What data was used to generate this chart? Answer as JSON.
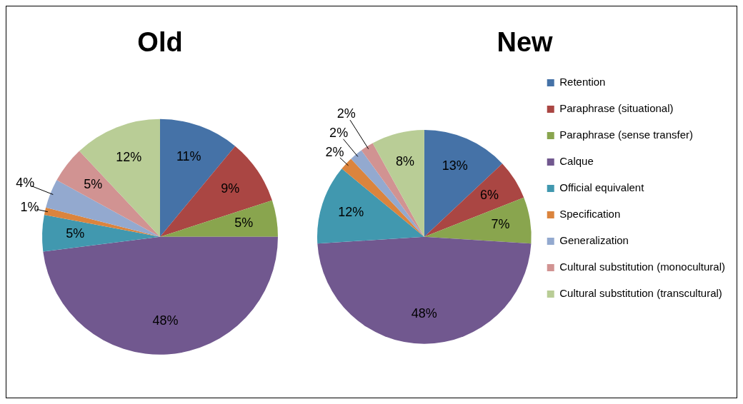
{
  "chart_data": [
    {
      "type": "pie",
      "title": "Old",
      "categories": [
        null,
        null,
        null,
        null,
        null,
        null,
        null,
        null,
        null
      ],
      "values": [
        11,
        9,
        5,
        48,
        5,
        1,
        4,
        5,
        12
      ],
      "value_labels": [
        "11%",
        "9%",
        "5%",
        "48%",
        "5%",
        "1%",
        "4%",
        "5%",
        "12%"
      ],
      "colors": [
        "#4572a7",
        "#aa4643",
        "#89a54e",
        "#71588f",
        "#4198af",
        "#db843d",
        "#93a9cf",
        "#d19392",
        "#b9cd96"
      ],
      "legend": false
    },
    {
      "type": "pie",
      "title": "New",
      "categories": [
        "Retention",
        "Paraphrase (situational)",
        "Paraphrase (sense transfer)",
        "Calque",
        "Official equivalent",
        "Specification",
        "Generalization",
        "Cultural substitution (monocultural)",
        "Cultural substitution (transcultural)"
      ],
      "values": [
        13,
        6,
        7,
        48,
        12,
        2,
        2,
        2,
        8
      ],
      "value_labels": [
        "13%",
        "6%",
        "7%",
        "48%",
        "12%",
        "2%",
        "2%",
        "2%",
        "8%"
      ],
      "colors": [
        "#4572a7",
        "#aa4643",
        "#89a54e",
        "#71588f",
        "#4198af",
        "#db843d",
        "#93a9cf",
        "#d19392",
        "#b9cd96"
      ],
      "legend": "right"
    }
  ]
}
